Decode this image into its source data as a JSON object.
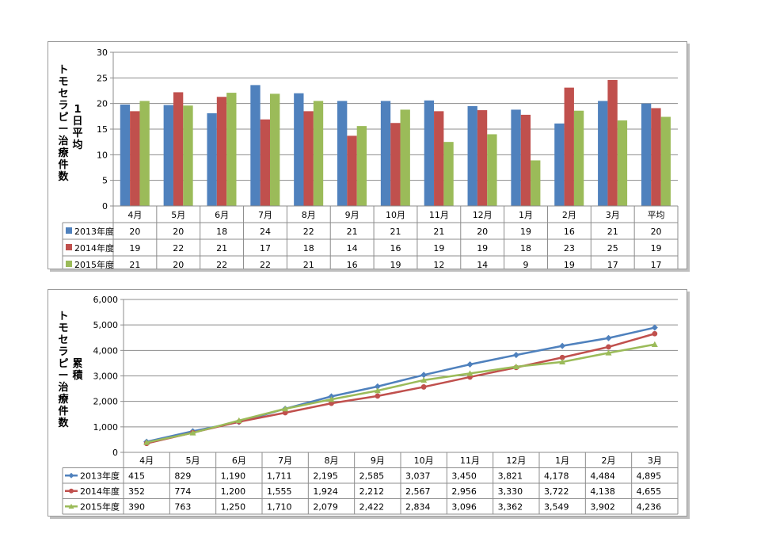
{
  "charts": [
    {
      "ylabel_outer": "トモセラピー治療件数",
      "ylabel_inner": "1日平均"
    },
    {
      "ylabel_outer": "トモセラピー治療件数",
      "ylabel_inner": "累積"
    }
  ],
  "chart_data": [
    {
      "type": "bar",
      "title": "",
      "categories": [
        "4月",
        "5月",
        "6月",
        "7月",
        "8月",
        "9月",
        "10月",
        "11月",
        "12月",
        "1月",
        "2月",
        "3月",
        "平均"
      ],
      "ylim": [
        0,
        30
      ],
      "yticks": [
        0,
        5,
        10,
        15,
        20,
        25,
        30
      ],
      "grid": true,
      "legend": "data-table",
      "colors": [
        "#4f81bd",
        "#c0504d",
        "#9bbb59"
      ],
      "series": [
        {
          "name": "2013年度",
          "values": [
            19.8,
            19.7,
            18.1,
            23.6,
            22.0,
            20.5,
            20.5,
            20.6,
            19.5,
            18.8,
            16.1,
            20.5,
            20.0
          ],
          "labels": [
            "20",
            "20",
            "18",
            "24",
            "22",
            "21",
            "21",
            "21",
            "20",
            "19",
            "16",
            "21",
            "20"
          ]
        },
        {
          "name": "2014年度",
          "values": [
            18.5,
            22.2,
            21.3,
            16.9,
            18.5,
            13.7,
            16.2,
            18.5,
            18.7,
            17.8,
            23.1,
            24.6,
            19.1
          ],
          "labels": [
            "19",
            "22",
            "21",
            "17",
            "18",
            "14",
            "16",
            "19",
            "19",
            "18",
            "23",
            "25",
            "19"
          ]
        },
        {
          "name": "2015年度",
          "values": [
            20.5,
            19.6,
            22.1,
            21.9,
            20.5,
            15.6,
            18.8,
            12.5,
            14.0,
            8.9,
            18.6,
            16.7,
            17.4
          ],
          "labels": [
            "21",
            "20",
            "22",
            "22",
            "21",
            "16",
            "19",
            "12",
            "14",
            "9",
            "19",
            "17",
            "17"
          ]
        }
      ]
    },
    {
      "type": "line",
      "title": "",
      "categories": [
        "4月",
        "5月",
        "6月",
        "7月",
        "8月",
        "9月",
        "10月",
        "11月",
        "12月",
        "1月",
        "2月",
        "3月"
      ],
      "ylim": [
        0,
        6000
      ],
      "yticks": [
        "0",
        "1,000",
        "2,000",
        "3,000",
        "4,000",
        "5,000",
        "6,000"
      ],
      "grid": true,
      "legend": "data-table",
      "colors": [
        "#4f81bd",
        "#c0504d",
        "#9bbb59"
      ],
      "markers": [
        "diamond",
        "circle",
        "triangle"
      ],
      "series": [
        {
          "name": "2013年度",
          "values": [
            415,
            829,
            1190,
            1711,
            2195,
            2585,
            3037,
            3450,
            3821,
            4178,
            4484,
            4895
          ],
          "labels": [
            "415",
            "829",
            "1,190",
            "1,711",
            "2,195",
            "2,585",
            "3,037",
            "3,450",
            "3,821",
            "4,178",
            "4,484",
            "4,895"
          ]
        },
        {
          "name": "2014年度",
          "values": [
            352,
            774,
            1200,
            1555,
            1924,
            2212,
            2567,
            2956,
            3330,
            3722,
            4138,
            4655
          ],
          "labels": [
            "352",
            "774",
            "1,200",
            "1,555",
            "1,924",
            "2,212",
            "2,567",
            "2,956",
            "3,330",
            "3,722",
            "4,138",
            "4,655"
          ]
        },
        {
          "name": "2015年度",
          "values": [
            390,
            763,
            1250,
            1710,
            2079,
            2422,
            2834,
            3096,
            3362,
            3549,
            3902,
            4236
          ],
          "labels": [
            "390",
            "763",
            "1,250",
            "1,710",
            "2,079",
            "2,422",
            "2,834",
            "3,096",
            "3,362",
            "3,549",
            "3,902",
            "4,236"
          ]
        }
      ]
    }
  ]
}
